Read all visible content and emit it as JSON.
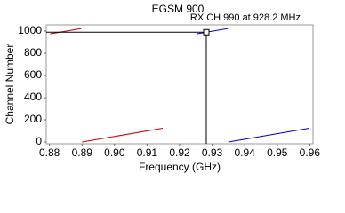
{
  "chart_data": {
    "type": "line",
    "title": "EGSM 900",
    "annotation": "RX CH 990 at 928.2 MHz",
    "xlabel": "Frequency (GHz)",
    "ylabel": "Channel Number",
    "series": [
      {
        "color": "#c00000",
        "x": [
          0.8802,
          0.8898
        ],
        "values": [
          975,
          1023
        ]
      },
      {
        "color": "#c00000",
        "x": [
          0.89,
          0.9148
        ],
        "values": [
          0,
          124
        ]
      },
      {
        "color": "#0000c0",
        "x": [
          0.9252,
          0.9348
        ],
        "values": [
          975,
          1023
        ]
      },
      {
        "color": "#0000c0",
        "x": [
          0.935,
          0.9598
        ],
        "values": [
          0,
          124
        ]
      }
    ],
    "marker": {
      "x": 0.9282,
      "y": 990
    },
    "xlim": [
      0.879,
      0.961
    ],
    "ylim": [
      -16,
      1056
    ],
    "xticks": [
      {
        "value": 0.88,
        "label": "0.88"
      },
      {
        "value": 0.89,
        "label": "0.89"
      },
      {
        "value": 0.9,
        "label": "0.90"
      },
      {
        "value": 0.91,
        "label": "0.91"
      },
      {
        "value": 0.92,
        "label": "0.92"
      },
      {
        "value": 0.93,
        "label": "0.93"
      },
      {
        "value": 0.94,
        "label": "0.94"
      },
      {
        "value": 0.95,
        "label": "0.95"
      },
      {
        "value": 0.96,
        "label": "0.96"
      }
    ],
    "yticks": [
      0,
      200,
      400,
      600,
      800,
      1000
    ]
  }
}
